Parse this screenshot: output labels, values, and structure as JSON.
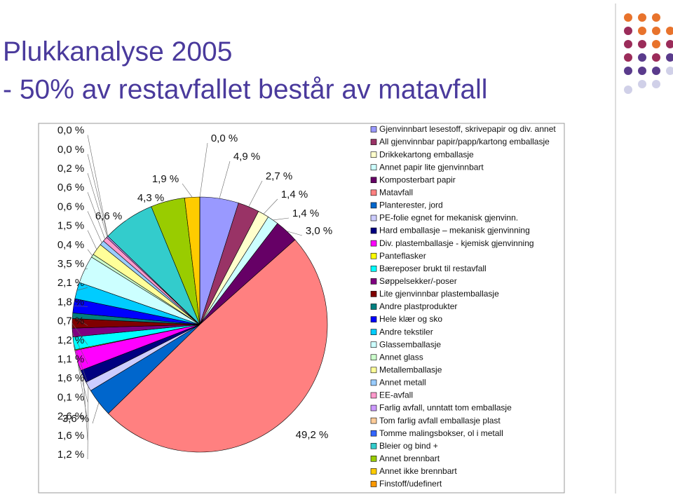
{
  "chart_data": {
    "type": "pie",
    "title": "Plukkanalyse 2005",
    "subtitle": "- 50% av restavfallet består av matavfall",
    "categories": [
      "Gjenvinnbart lesestoff, skrivepapir og div. annet",
      "All gjenvinnbar papir/papp/kartong emballasje",
      "Drikkekartong emballasje",
      "Annet papir lite gjenvinnbart",
      "Komposterbart papir",
      "Matavfall",
      "Planterester, jord",
      "PE-folie egnet for mekanisk gjenvinn.",
      "Hard emballasje – mekanisk gjenvinning",
      "Div. plastemballasje - kjemisk gjenvinning",
      "Panteflasker",
      "Bæreposer brukt til restavfall",
      "Søppelsekker/-poser",
      "Lite gjenvinnbar plastemballasje",
      "Andre plastprodukter",
      "Hele klær og sko",
      "Andre tekstiler",
      "Glassemballasje",
      "Annet glass",
      "Metallemballasje",
      "Annet metall",
      "EE-avfall",
      "Farlig avfall, unntatt tom emballasje",
      "Tom farlig avfall emballasje plast",
      "Tomme malingsbokser, ol i metall",
      "Bleier og bind +",
      "Annet brennbart",
      "Annet ikke brennbart",
      "Finstoff/udefinert"
    ],
    "values": [
      4.9,
      2.7,
      1.4,
      1.4,
      3.0,
      49.2,
      3.6,
      1.2,
      1.6,
      2.6,
      0.1,
      1.6,
      1.1,
      1.2,
      0.7,
      1.8,
      2.1,
      3.5,
      0.4,
      1.5,
      0.6,
      0.6,
      0.2,
      0.0,
      0.0,
      6.6,
      4.3,
      1.9,
      0.0
    ],
    "value_labels": [
      "4,9 %",
      "2,7 %",
      "1,4 %",
      "1,4 %",
      "3,0 %",
      "49,2 %",
      "3,6 %",
      "1,2 %",
      "1,6 %",
      "2,6 %",
      "0,1 %",
      "1,6 %",
      "1,1 %",
      "1,2 %",
      "0,7 %",
      "1,8 %",
      "2,1 %",
      "3,5 %",
      "0,4 %",
      "1,5 %",
      "0,6 %",
      "0,6 %",
      "0,2 %",
      "0,0 %",
      "0,0 %",
      "6,6 %",
      "4,3 %",
      "1,9 %",
      "0,0 %"
    ],
    "colors": [
      "#9999ff",
      "#993366",
      "#ffffcc",
      "#ccffff",
      "#660066",
      "#ff8080",
      "#0066cc",
      "#ccccff",
      "#000080",
      "#ff00ff",
      "#ffff00",
      "#00ffff",
      "#800080",
      "#800000",
      "#008080",
      "#0000ff",
      "#00ccff",
      "#ccffff",
      "#ccffcc",
      "#ffff99",
      "#99ccff",
      "#ff99cc",
      "#cc99ff",
      "#ffcc99",
      "#3366ff",
      "#33cccc",
      "#99cc00",
      "#ffcc00",
      "#ff9900"
    ],
    "legend": "right"
  }
}
